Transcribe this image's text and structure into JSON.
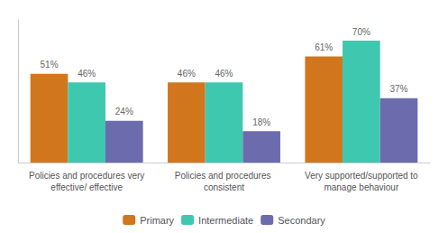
{
  "chart_data": {
    "type": "bar",
    "categories": [
      "Policies and procedures very\neffective/ effective",
      "Policies and procedures consistent",
      "Very supported/supported to\nmanage behaviour"
    ],
    "series": [
      {
        "name": "Primary",
        "color": "#D2761E",
        "values": [
          51,
          46,
          61
        ],
        "value_labels": [
          "51%",
          "46%",
          "61%"
        ]
      },
      {
        "name": "Intermediate",
        "color": "#3EC8B0",
        "values": [
          46,
          46,
          70
        ],
        "value_labels": [
          "46%",
          "46%",
          "70%"
        ]
      },
      {
        "name": "Secondary",
        "color": "#6B6BAE",
        "values": [
          24,
          18,
          37
        ],
        "value_labels": [
          "24%",
          "18%",
          "37%"
        ]
      }
    ],
    "ylim": [
      0,
      82
    ],
    "grid": false,
    "legend": "bottom",
    "data_labels": true,
    "tick_labels": "x"
  }
}
